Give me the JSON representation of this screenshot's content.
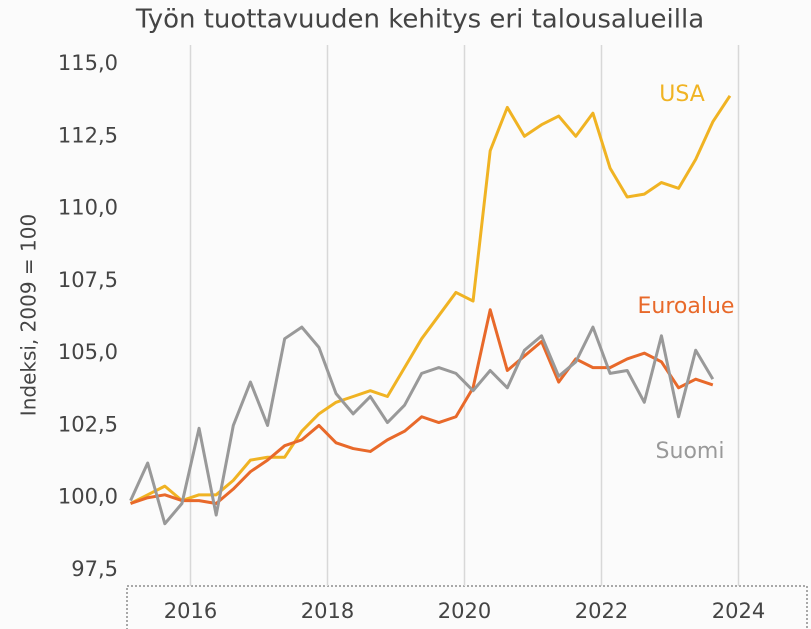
{
  "chart_data": {
    "type": "line",
    "title": "Työn tuottavuuden kehitys eri talousalueilla",
    "y_label": "Indeksi, 2009 = 100",
    "x": [
      2015.125,
      2015.375,
      2015.625,
      2015.875,
      2016.125,
      2016.375,
      2016.625,
      2016.875,
      2017.125,
      2017.375,
      2017.625,
      2017.875,
      2018.125,
      2018.375,
      2018.625,
      2018.875,
      2019.125,
      2019.375,
      2019.625,
      2019.875,
      2020.125,
      2020.375,
      2020.625,
      2020.875,
      2021.125,
      2021.375,
      2021.625,
      2021.875,
      2022.125,
      2022.375,
      2022.625,
      2022.875,
      2023.125,
      2023.375,
      2023.625,
      2023.875
    ],
    "series": [
      {
        "name": "USA",
        "color": "#f0b323",
        "values": [
          99.8,
          100.1,
          100.4,
          99.9,
          100.1,
          100.1,
          100.6,
          101.3,
          101.4,
          101.4,
          102.3,
          102.9,
          103.3,
          103.5,
          103.7,
          103.5,
          104.5,
          105.5,
          106.3,
          107.1,
          106.8,
          112.0,
          113.5,
          112.5,
          112.9,
          113.2,
          112.5,
          113.3,
          111.4,
          110.4,
          110.5,
          110.9,
          110.7,
          111.7,
          113.0,
          113.9
        ]
      },
      {
        "name": "Euroalue",
        "color": "#e8692a",
        "values": [
          99.8,
          100.0,
          100.1,
          99.9,
          99.9,
          99.8,
          100.3,
          100.9,
          101.3,
          101.8,
          102.0,
          102.5,
          101.9,
          101.7,
          101.6,
          102.0,
          102.3,
          102.8,
          102.6,
          102.8,
          103.8,
          106.5,
          104.4,
          104.9,
          105.4,
          104.0,
          104.8,
          104.5,
          104.5,
          104.8,
          105.0,
          104.7,
          103.8,
          104.1,
          103.9,
          null
        ]
      },
      {
        "name": "Suomi",
        "color": "#999999",
        "values": [
          99.9,
          101.2,
          99.1,
          99.8,
          102.4,
          99.4,
          102.5,
          104.0,
          102.5,
          105.5,
          105.9,
          105.2,
          103.6,
          102.9,
          103.5,
          102.6,
          103.2,
          104.3,
          104.5,
          104.3,
          103.7,
          104.4,
          103.8,
          105.1,
          105.6,
          104.2,
          104.7,
          105.9,
          104.3,
          104.4,
          103.3,
          105.6,
          102.8,
          105.1,
          104.1,
          null
        ]
      }
    ],
    "xlim": [
      2015,
      2025
    ],
    "xticks": [
      2016,
      2018,
      2020,
      2022,
      2024
    ],
    "ylim": [
      97.5,
      115
    ],
    "yticks": [
      {
        "value": 97.5,
        "label": "97,5"
      },
      {
        "value": 100,
        "label": "100,0"
      },
      {
        "value": 102.5,
        "label": "102,5"
      },
      {
        "value": 105,
        "label": "105,0"
      },
      {
        "value": 107.5,
        "label": "107,5"
      },
      {
        "value": 110,
        "label": "110,0"
      },
      {
        "value": 112.5,
        "label": "112,5"
      },
      {
        "value": 115,
        "label": "115,0"
      }
    ],
    "grid": true
  }
}
